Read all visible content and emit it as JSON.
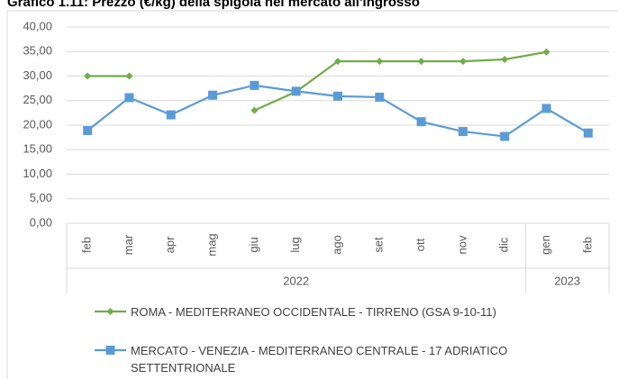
{
  "chart_data": {
    "type": "line",
    "title": "Grafico 1.11: Prezzo (€/kg) della spigola nel mercato all'ingrosso",
    "categories": [
      "feb",
      "mar",
      "apr",
      "mag",
      "giu",
      "lug",
      "ago",
      "set",
      "ott",
      "nov",
      "dic",
      "gen",
      "feb"
    ],
    "groups": [
      {
        "label": "2022",
        "span": 11
      },
      {
        "label": "2023",
        "span": 2
      }
    ],
    "series": [
      {
        "name": "ROMA - MEDITERRANEO OCCIDENTALE - TIRRENO (GSA 9-10-11)",
        "color": "#70ad47",
        "marker": "diamond",
        "values": [
          30,
          30,
          null,
          null,
          23,
          26.8,
          33,
          33,
          33,
          33,
          33.4,
          34.9,
          null
        ]
      },
      {
        "name": "MERCATO - VENEZIA - MEDITERRANEO CENTRALE - 17 ADRIATICO SETTENTRIONALE",
        "color": "#5b9bd5",
        "marker": "square",
        "values": [
          18.9,
          25.6,
          22.1,
          26.1,
          28.1,
          26.9,
          25.9,
          25.7,
          20.7,
          18.7,
          17.7,
          23.4,
          18.4
        ]
      }
    ],
    "ylim": [
      0,
      40
    ],
    "yticks": [
      {
        "value": 0,
        "label": "0,00"
      },
      {
        "value": 5,
        "label": "5,00"
      },
      {
        "value": 10,
        "label": "10,00"
      },
      {
        "value": 15,
        "label": "15,00"
      },
      {
        "value": 20,
        "label": "20,00"
      },
      {
        "value": 25,
        "label": "25,00"
      },
      {
        "value": 30,
        "label": "30,00"
      },
      {
        "value": 35,
        "label": "35,00"
      },
      {
        "value": 40,
        "label": "40,00"
      }
    ],
    "grid": true,
    "legend": "bottom"
  }
}
